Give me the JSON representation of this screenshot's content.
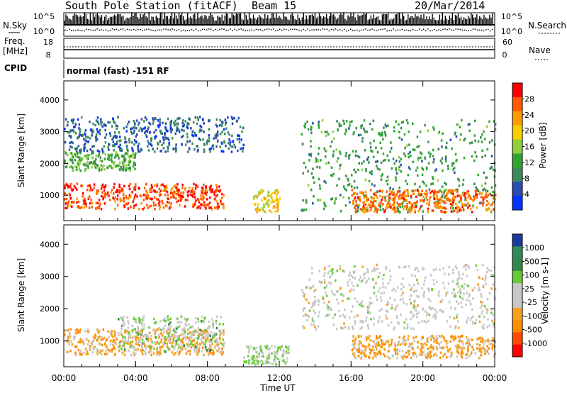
{
  "header": {
    "station": "South Pole Station (fitACF)",
    "beam": "Beam 15",
    "date": "20/Mar/2014"
  },
  "top_panels": {
    "nsky_label": "N.Sky",
    "nsearch_label": "N.Search",
    "nsky_ticks": [
      "10^5",
      "10^0"
    ],
    "nsearch_ticks": [
      "10^5",
      "10^0"
    ],
    "freq_label": "Freq.",
    "freq_unit": "[MHz]",
    "freq_ticks": [
      "18",
      "8"
    ],
    "nave_label": "Nave",
    "nave_ticks": [
      "60",
      "0"
    ],
    "cpid_label": "CPID",
    "cpid_text": "normal (fast) -151 RF"
  },
  "colors": {
    "power_scale": [
      "#0033ff",
      "#2a4cb0",
      "#3d8a5a",
      "#2fa52f",
      "#8fd03a",
      "#f7d000",
      "#ff9a00",
      "#ff5a00",
      "#ff0000"
    ],
    "velocity_scale": [
      "#ff0000",
      "#ff4800",
      "#ff8c00",
      "#f7a020",
      "#c8c8c8",
      "#c8c8c8",
      "#66cc33",
      "#2f8a4a",
      "#2f8a5a",
      "#1a3aa0"
    ]
  },
  "chart_data": [
    {
      "type": "heatmap",
      "title": "",
      "xlabel": "Time UT",
      "ylabel": "Slant Range [km]",
      "x_ticks": [
        "00:00",
        "04:00",
        "08:00",
        "12:00",
        "16:00",
        "20:00",
        "00:00"
      ],
      "y_ticks": [
        "1000",
        "2000",
        "3000",
        "4000"
      ],
      "ylim": [
        200,
        4600
      ],
      "colorbar_label": "Power [dB]",
      "colorbar_ticks": [
        "4",
        "8",
        "12",
        "16",
        "20",
        "24",
        "28"
      ],
      "scale_range": [
        0,
        30
      ],
      "regions": [
        {
          "t": [
            0.0,
            8.9
          ],
          "range": [
            600,
            1400
          ],
          "value": 26
        },
        {
          "t": [
            0.0,
            4.0
          ],
          "range": [
            1800,
            2400
          ],
          "value": 12
        },
        {
          "t": [
            0.0,
            10.0
          ],
          "range": [
            2400,
            3500
          ],
          "value": 6
        },
        {
          "t": [
            10.5,
            12.0
          ],
          "range": [
            500,
            1200
          ],
          "value": 18
        },
        {
          "t": [
            13.2,
            24.0
          ],
          "range": [
            500,
            3400
          ],
          "value": 10
        },
        {
          "t": [
            16.0,
            24.0
          ],
          "range": [
            500,
            1200
          ],
          "value": 24
        }
      ]
    },
    {
      "type": "heatmap",
      "title": "",
      "xlabel": "Time UT",
      "ylabel": "Slant Range [km]",
      "x_ticks": [
        "00:00",
        "04:00",
        "08:00",
        "12:00",
        "16:00",
        "20:00",
        "00:00"
      ],
      "y_ticks": [
        "1000",
        "2000",
        "3000",
        "4000"
      ],
      "ylim": [
        200,
        4600
      ],
      "colorbar_label": "Velocity [m s-1]",
      "colorbar_ticks": [
        "1000",
        "500",
        "100",
        "25",
        "-25",
        "-100",
        "-500",
        "-1000"
      ],
      "scale_range": [
        -1000,
        1000
      ],
      "regions": [
        {
          "t": [
            0.0,
            8.9
          ],
          "range": [
            600,
            1400
          ],
          "value": -300
        },
        {
          "t": [
            3.0,
            8.9
          ],
          "range": [
            700,
            1800
          ],
          "value": 200
        },
        {
          "t": [
            10.0,
            12.5
          ],
          "range": [
            300,
            900
          ],
          "value": 150
        },
        {
          "t": [
            13.2,
            24.0
          ],
          "range": [
            1400,
            3400
          ],
          "value": 0
        },
        {
          "t": [
            16.0,
            24.0
          ],
          "range": [
            500,
            1200
          ],
          "value": -300
        }
      ]
    }
  ]
}
